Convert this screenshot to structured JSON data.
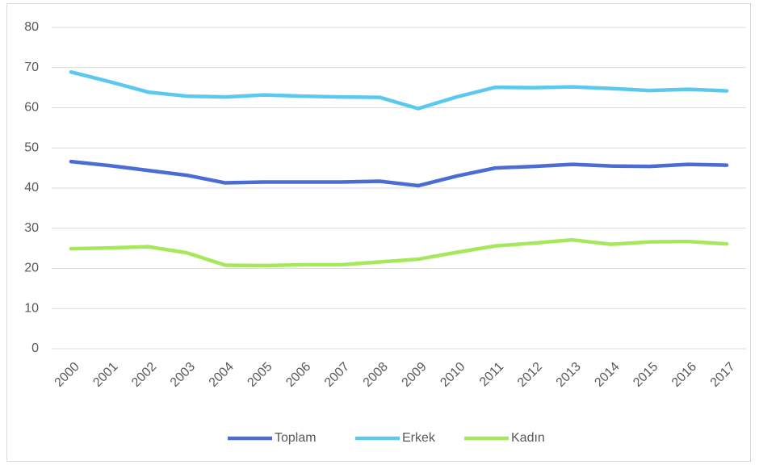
{
  "chart_data": {
    "type": "line",
    "x": [
      "2000",
      "2001",
      "2002",
      "2003",
      "2004",
      "2005",
      "2006",
      "2007",
      "2008",
      "2009",
      "2010",
      "2011",
      "2012",
      "2013",
      "2014",
      "2015",
      "2016",
      "2017"
    ],
    "series": [
      {
        "name": "Toplam",
        "color": "#4a6cd4",
        "values": [
          46.6,
          45.6,
          44.4,
          43.2,
          41.3,
          41.5,
          41.5,
          41.5,
          41.7,
          40.6,
          43.0,
          45.0,
          45.4,
          45.9,
          45.5,
          45.4,
          45.9,
          45.7
        ]
      },
      {
        "name": "Erkek",
        "color": "#5bc8f0",
        "values": [
          68.9,
          66.5,
          63.9,
          62.9,
          62.7,
          63.2,
          62.9,
          62.7,
          62.6,
          59.8,
          62.7,
          65.1,
          65.0,
          65.2,
          64.8,
          64.3,
          64.6,
          64.2
        ]
      },
      {
        "name": "Kadın",
        "color": "#a5e85a",
        "values": [
          24.9,
          25.1,
          25.4,
          23.9,
          20.8,
          20.7,
          20.9,
          20.9,
          21.6,
          22.3,
          24.0,
          25.6,
          26.3,
          27.1,
          26.0,
          26.6,
          26.7,
          26.1
        ]
      }
    ],
    "ylim": [
      0,
      80
    ],
    "yticks": [
      0,
      10,
      20,
      30,
      40,
      50,
      60,
      70,
      80
    ],
    "grid": true,
    "legend": "bottom"
  }
}
